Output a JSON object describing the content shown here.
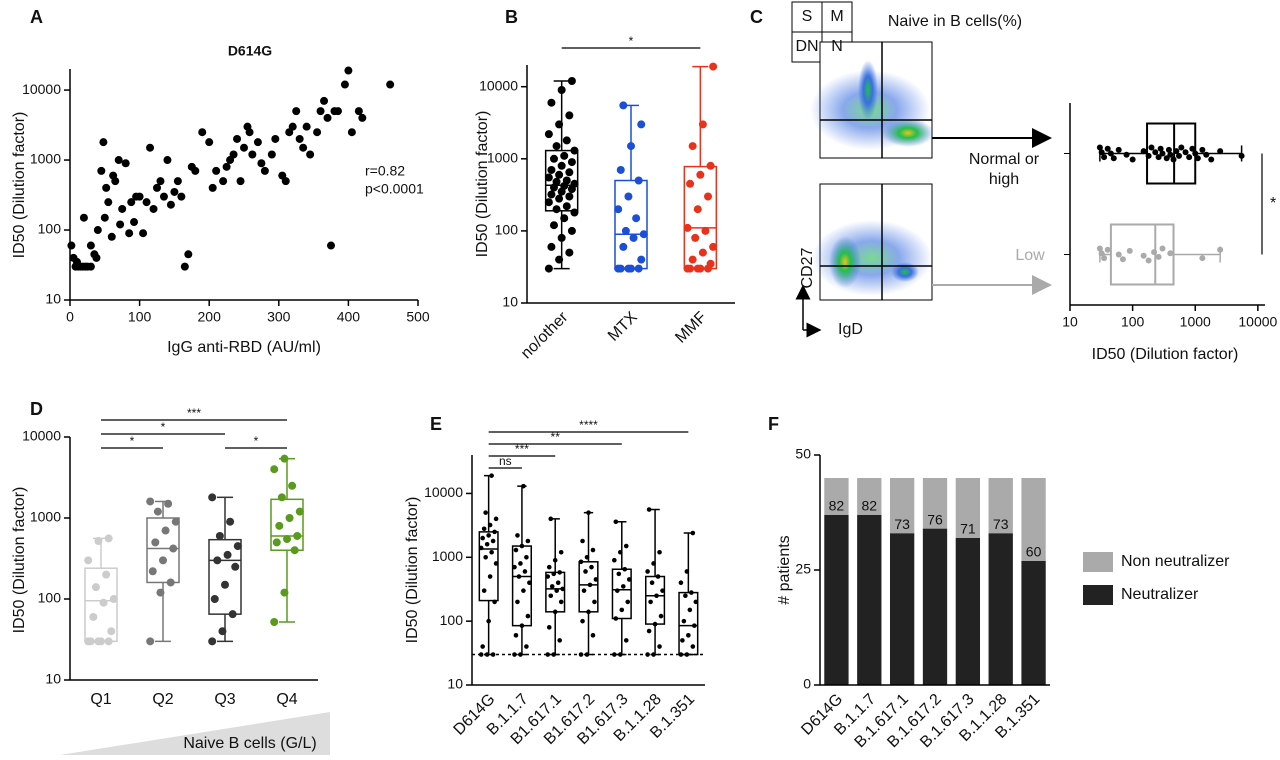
{
  "chart_data": [
    {
      "type": "scatter",
      "panel": "A",
      "title": "D614G",
      "x_label": "IgG anti-RBD (AU/ml)",
      "y_label": "ID50 (Dilution factor)",
      "x": [
        2,
        5,
        8,
        10,
        12,
        15,
        18,
        22,
        25,
        30,
        20,
        30,
        35,
        38,
        40,
        45,
        48,
        50,
        52,
        55,
        60,
        62,
        65,
        70,
        72,
        75,
        80,
        85,
        88,
        92,
        95,
        100,
        105,
        110,
        115,
        120,
        125,
        130,
        135,
        140,
        145,
        150,
        155,
        160,
        165,
        170,
        175,
        180,
        190,
        200,
        205,
        210,
        220,
        225,
        230,
        235,
        240,
        245,
        250,
        255,
        258,
        262,
        270,
        275,
        280,
        290,
        295,
        305,
        310,
        315,
        320,
        325,
        330,
        335,
        340,
        345,
        355,
        360,
        365,
        370,
        375,
        380,
        385,
        395,
        400,
        405,
        415,
        420,
        460
      ],
      "y": [
        60,
        40,
        30,
        35,
        30,
        30,
        30,
        30,
        30,
        30,
        150,
        60,
        45,
        40,
        100,
        700,
        1800,
        150,
        400,
        250,
        80,
        600,
        500,
        1000,
        120,
        200,
        900,
        90,
        250,
        130,
        300,
        300,
        90,
        250,
        1500,
        200,
        400,
        500,
        300,
        1000,
        230,
        350,
        500,
        300,
        30,
        45,
        800,
        700,
        2500,
        1800,
        400,
        700,
        500,
        800,
        1000,
        1200,
        2000,
        500,
        1500,
        3000,
        2500,
        1200,
        1800,
        900,
        700,
        1200,
        2000,
        600,
        500,
        2500,
        3000,
        5000,
        2000,
        1500,
        3000,
        1200,
        2500,
        5000,
        7000,
        4000,
        60,
        5000,
        5000,
        12000,
        19000,
        2500,
        5000,
        4000,
        12000
      ],
      "color": "#000000",
      "xlim": [
        0,
        500
      ],
      "xticks": [
        0,
        100,
        200,
        300,
        400,
        500
      ],
      "ylim": [
        10,
        20000
      ],
      "yticks": [
        10,
        100,
        1000,
        10000
      ],
      "log_y": true,
      "annotations": [
        "r=0.82",
        "p<0.0001"
      ]
    },
    {
      "type": "box",
      "panel": "B",
      "y_label": "ID50 (Dilution factor)",
      "categories": [
        "no/other",
        "MTX",
        "MMF"
      ],
      "colors": [
        "#000000",
        "#1a4fd6",
        "#e8321c"
      ],
      "ylim": [
        10,
        20000
      ],
      "yticks": [
        10,
        100,
        1000,
        10000
      ],
      "log_y": true,
      "groups": [
        {
          "min": 30,
          "q1": 190,
          "median": 430,
          "q3": 1300,
          "max": 12000,
          "points": [
            30,
            40,
            50,
            60,
            80,
            100,
            120,
            150,
            180,
            200,
            220,
            250,
            280,
            300,
            320,
            350,
            380,
            400,
            420,
            450,
            480,
            500,
            550,
            600,
            650,
            700,
            800,
            900,
            1000,
            1100,
            1300,
            1500,
            1800,
            2200,
            3000,
            4000,
            6000,
            9000,
            12000
          ]
        },
        {
          "min": 30,
          "q1": 30,
          "median": 90,
          "q3": 500,
          "max": 5500,
          "points": [
            30,
            30,
            30,
            30,
            30,
            40,
            60,
            80,
            90,
            100,
            150,
            200,
            300,
            500,
            700,
            1500,
            3000,
            5500
          ]
        },
        {
          "min": 30,
          "q1": 30,
          "median": 110,
          "q3": 780,
          "max": 19000,
          "points": [
            30,
            30,
            30,
            30,
            30,
            35,
            40,
            50,
            60,
            80,
            100,
            110,
            200,
            300,
            450,
            600,
            800,
            1500,
            3000,
            19000
          ]
        }
      ],
      "brackets": [
        {
          "from": "no/other",
          "to": "MMF",
          "label": "*"
        }
      ]
    },
    {
      "type": "box",
      "orientation": "horizontal",
      "panel": "C",
      "title": "Naive in B cells(%)",
      "gate_labels": [
        "S",
        "M",
        "DN",
        "N"
      ],
      "flow_y_label": "CD27",
      "flow_x_label": "IgD",
      "x_label": "ID50 (Dilution factor)",
      "categories": [
        "Normal or high",
        "Low"
      ],
      "colors": [
        "#000000",
        "#aaaaaa"
      ],
      "xlim": [
        10,
        13000
      ],
      "xticks": [
        10,
        100,
        1000,
        10000
      ],
      "log_x": true,
      "groups": [
        {
          "min": 30,
          "q1": 170,
          "median": 460,
          "q3": 1000,
          "max": 5500,
          "points": [
            30,
            32,
            35,
            40,
            45,
            50,
            60,
            80,
            100,
            150,
            180,
            200,
            230,
            260,
            280,
            300,
            350,
            380,
            400,
            450,
            500,
            550,
            600,
            700,
            800,
            900,
            1000,
            1100,
            1300,
            1500,
            1800,
            2500,
            5500
          ]
        },
        {
          "min": 30,
          "q1": 45,
          "median": 230,
          "q3": 450,
          "max": 2500,
          "points": [
            30,
            32,
            35,
            40,
            60,
            70,
            90,
            150,
            180,
            220,
            260,
            300,
            400,
            1300,
            2500
          ]
        }
      ],
      "brackets": [
        {
          "from": "Normal or high",
          "to": "Low",
          "label": "*"
        }
      ]
    },
    {
      "type": "box",
      "panel": "D",
      "y_label": "ID50 (Dilution factor)",
      "x_label": "Naive B cells (G/L)",
      "categories": [
        "Q1",
        "Q2",
        "Q3",
        "Q4"
      ],
      "colors": [
        "#cccccc",
        "#777777",
        "#333333",
        "#5a9a1c"
      ],
      "ylim": [
        10,
        10000
      ],
      "yticks": [
        10,
        100,
        1000,
        10000
      ],
      "log_y": true,
      "groups": [
        {
          "min": 30,
          "q1": 30,
          "median": 95,
          "q3": 240,
          "max": 560,
          "points": [
            30,
            30,
            30,
            30,
            30,
            40,
            60,
            90,
            100,
            140,
            200,
            300,
            520,
            560
          ]
        },
        {
          "min": 30,
          "q1": 160,
          "median": 420,
          "q3": 1000,
          "max": 1600,
          "points": [
            30,
            120,
            160,
            220,
            300,
            420,
            500,
            700,
            900,
            1200,
            1500,
            1600
          ]
        },
        {
          "min": 30,
          "q1": 65,
          "median": 300,
          "q3": 540,
          "max": 1800,
          "points": [
            30,
            40,
            65,
            100,
            150,
            250,
            300,
            350,
            450,
            600,
            900,
            1800
          ]
        },
        {
          "min": 52,
          "q1": 400,
          "median": 600,
          "q3": 1700,
          "max": 5400,
          "points": [
            52,
            120,
            400,
            500,
            550,
            600,
            800,
            1000,
            1200,
            1800,
            2500,
            4000,
            5400
          ]
        }
      ],
      "brackets": [
        {
          "from": "Q1",
          "to": "Q4",
          "label": "***"
        },
        {
          "from": "Q1",
          "to": "Q3",
          "label": "*"
        },
        {
          "from": "Q1",
          "to": "Q2",
          "label": "*"
        },
        {
          "from": "Q3",
          "to": "Q4",
          "label": "*"
        }
      ]
    },
    {
      "type": "box",
      "panel": "E",
      "y_label": "ID50 (Dilution factor)",
      "categories": [
        "D614G",
        "B.1.1.7",
        "B1.617.1",
        "B1.617.2",
        "B1.617.3",
        "B.1.1.28",
        "B.1.351"
      ],
      "colors": [
        "#000000",
        "#000000",
        "#000000",
        "#000000",
        "#000000",
        "#000000",
        "#000000"
      ],
      "ylim": [
        10,
        40000
      ],
      "yticks": [
        10,
        100,
        1000,
        10000
      ],
      "log_y": true,
      "limit_line": 30,
      "groups": [
        {
          "min": 30,
          "q1": 210,
          "median": 1350,
          "q3": 2500,
          "max": 19000,
          "points": [
            30,
            30,
            30,
            40,
            100,
            200,
            300,
            500,
            800,
            1000,
            1200,
            1400,
            1600,
            1800,
            2000,
            2200,
            2500,
            2800,
            3200,
            4000,
            5000,
            19000
          ]
        },
        {
          "min": 30,
          "q1": 85,
          "median": 500,
          "q3": 1500,
          "max": 13000,
          "points": [
            30,
            30,
            40,
            60,
            85,
            120,
            200,
            300,
            400,
            500,
            600,
            700,
            800,
            1000,
            1300,
            1500,
            1800,
            2200,
            13000
          ]
        },
        {
          "min": 30,
          "q1": 140,
          "median": 320,
          "q3": 580,
          "max": 4000,
          "points": [
            30,
            30,
            50,
            80,
            140,
            200,
            250,
            300,
            320,
            350,
            400,
            500,
            550,
            580,
            700,
            900,
            1200,
            4000
          ]
        },
        {
          "min": 30,
          "q1": 140,
          "median": 370,
          "q3": 850,
          "max": 5000,
          "points": [
            30,
            30,
            60,
            100,
            140,
            200,
            300,
            370,
            450,
            600,
            700,
            850,
            1000,
            1300,
            1800,
            5000
          ]
        },
        {
          "min": 30,
          "q1": 110,
          "median": 310,
          "q3": 650,
          "max": 3600,
          "points": [
            30,
            30,
            50,
            110,
            150,
            200,
            300,
            350,
            450,
            550,
            650,
            900,
            1200,
            1500,
            3600
          ]
        },
        {
          "min": 30,
          "q1": 90,
          "median": 250,
          "q3": 500,
          "max": 5600,
          "points": [
            30,
            30,
            40,
            70,
            90,
            120,
            200,
            250,
            300,
            400,
            500,
            600,
            800,
            1200,
            5600
          ]
        },
        {
          "min": 30,
          "q1": 30,
          "median": 85,
          "q3": 280,
          "max": 2400,
          "points": [
            30,
            30,
            40,
            50,
            60,
            85,
            100,
            150,
            200,
            250,
            280,
            400,
            600,
            2400
          ]
        }
      ],
      "brackets": [
        {
          "from": "D614G",
          "to": "B.1.351",
          "label": "****"
        },
        {
          "from": "D614G",
          "to": "B1.617.3",
          "label": "**"
        },
        {
          "from": "D614G",
          "to": "B1.617.1",
          "label": "***"
        },
        {
          "from": "D614G",
          "to": "B.1.1.7",
          "label": "ns"
        }
      ]
    },
    {
      "type": "stacked_bar",
      "panel": "F",
      "y_label": "# patients",
      "categories": [
        "D614G",
        "B.1.1.7",
        "B.1.617.1",
        "B.1.617.2",
        "B.1.617.3",
        "B.1.1.28",
        "B.1.351"
      ],
      "series": [
        {
          "name": "Neutralizer",
          "color": "#222222",
          "values": [
            37,
            37,
            33,
            34,
            32,
            33,
            27
          ]
        },
        {
          "name": "Non neutralizer",
          "color": "#aaaaaa",
          "values": [
            8,
            8,
            12,
            11,
            13,
            12,
            18
          ]
        }
      ],
      "neutralizer_percent": [
        82,
        82,
        73,
        76,
        71,
        73,
        60
      ],
      "ylim": [
        0,
        50
      ],
      "yticks": [
        0,
        25,
        50
      ]
    }
  ]
}
